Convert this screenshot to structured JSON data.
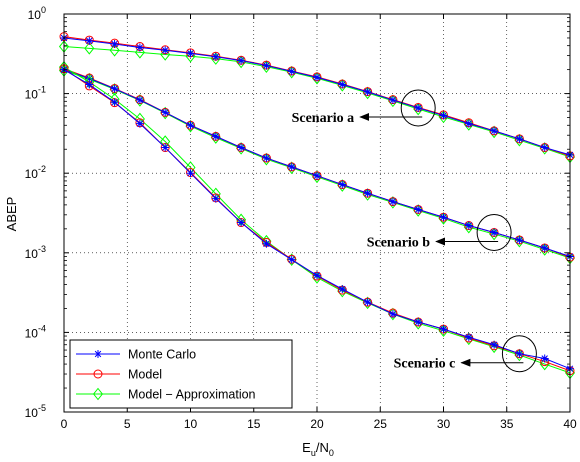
{
  "chart_data": {
    "type": "line",
    "xlabel": "E",
    "xlabel_sub1": "u",
    "xlabel_slash": "/N",
    "xlabel_sub2": "0",
    "ylabel": "ABEP",
    "xlim": [
      0,
      40
    ],
    "ylim": [
      1e-05,
      1
    ],
    "yscale": "log",
    "grid": true,
    "legend_position": "bottom-left",
    "x_ticks": [
      0,
      5,
      10,
      15,
      20,
      25,
      30,
      35,
      40
    ],
    "y_tick_labels": [
      {
        "base": "10",
        "exp": "0"
      },
      {
        "base": "10",
        "exp": "-1"
      },
      {
        "base": "10",
        "exp": "-2"
      },
      {
        "base": "10",
        "exp": "-3"
      },
      {
        "base": "10",
        "exp": "-4"
      },
      {
        "base": "10",
        "exp": "-5"
      }
    ],
    "x": [
      0,
      2,
      4,
      6,
      8,
      10,
      12,
      14,
      16,
      18,
      20,
      22,
      24,
      26,
      28,
      30,
      32,
      34,
      36,
      38,
      40
    ],
    "scenarios": [
      {
        "label": "Scenario a",
        "series": [
          {
            "name": "Monte Carlo",
            "color": "#0000ff",
            "marker": "star",
            "values": [
              0.5,
              0.46,
              0.42,
              0.38,
              0.35,
              0.32,
              0.29,
              0.26,
              0.225,
              0.19,
              0.16,
              0.13,
              0.105,
              0.083,
              0.066,
              0.053,
              0.042,
              0.034,
              0.027,
              0.021,
              0.017
            ]
          },
          {
            "name": "Model",
            "color": "#ff0000",
            "marker": "circle",
            "values": [
              0.52,
              0.47,
              0.43,
              0.39,
              0.355,
              0.325,
              0.295,
              0.262,
              0.228,
              0.192,
              0.162,
              0.132,
              0.106,
              0.084,
              0.067,
              0.054,
              0.043,
              0.034,
              0.027,
              0.021,
              0.0165
            ]
          },
          {
            "name": "Model - Approximation",
            "color": "#00ff00",
            "marker": "diamond",
            "values": [
              0.39,
              0.37,
              0.35,
              0.33,
              0.31,
              0.295,
              0.275,
              0.25,
              0.218,
              0.186,
              0.156,
              0.127,
              0.102,
              0.081,
              0.064,
              0.051,
              0.041,
              0.033,
              0.026,
              0.0205,
              0.016
            ]
          }
        ]
      },
      {
        "label": "Scenario b",
        "series": [
          {
            "name": "Monte Carlo",
            "color": "#0000ff",
            "marker": "star",
            "values": [
              0.2,
              0.155,
              0.115,
              0.083,
              0.058,
              0.04,
              0.029,
              0.021,
              0.0155,
              0.012,
              0.0093,
              0.0072,
              0.0056,
              0.0044,
              0.0035,
              0.0028,
              0.0022,
              0.0018,
              0.00145,
              0.00115,
              0.0009
            ]
          },
          {
            "name": "Model",
            "color": "#ff0000",
            "marker": "circle",
            "values": [
              0.205,
              0.157,
              0.116,
              0.084,
              0.058,
              0.04,
              0.029,
              0.021,
              0.0155,
              0.012,
              0.0093,
              0.0072,
              0.0056,
              0.0044,
              0.0035,
              0.0028,
              0.0022,
              0.0018,
              0.00145,
              0.00115,
              0.00088
            ]
          },
          {
            "name": "Model - Approximation",
            "color": "#00ff00",
            "marker": "diamond",
            "values": [
              0.195,
              0.152,
              0.113,
              0.082,
              0.057,
              0.039,
              0.028,
              0.0205,
              0.015,
              0.0117,
              0.009,
              0.007,
              0.0054,
              0.0043,
              0.0034,
              0.0027,
              0.0021,
              0.00172,
              0.0014,
              0.0011,
              0.00086
            ]
          }
        ]
      },
      {
        "label": "Scenario c",
        "series": [
          {
            "name": "Monte Carlo",
            "color": "#0000ff",
            "marker": "star",
            "values": [
              0.2,
              0.13,
              0.078,
              0.042,
              0.021,
              0.01,
              0.0048,
              0.0024,
              0.0013,
              0.00082,
              0.00052,
              0.00035,
              0.00024,
              0.00017,
              0.000135,
              0.00011,
              8.7e-05,
              7e-05,
              5.4e-05,
              4.7e-05,
              3.5e-05
            ]
          },
          {
            "name": "Model",
            "color": "#ff0000",
            "marker": "circle",
            "values": [
              0.205,
              0.125,
              0.077,
              0.043,
              0.021,
              0.0102,
              0.0049,
              0.0024,
              0.00135,
              0.00083,
              0.00051,
              0.00034,
              0.00024,
              0.000175,
              0.000135,
              0.00011,
              8.5e-05,
              6.8e-05,
              5.4e-05,
              4.3e-05,
              3.3e-05
            ]
          },
          {
            "name": "Model - Approximation",
            "color": "#00ff00",
            "marker": "diamond",
            "values": [
              0.215,
              0.14,
              0.085,
              0.048,
              0.025,
              0.0118,
              0.0055,
              0.0026,
              0.0014,
              0.00082,
              0.00049,
              0.00033,
              0.000235,
              0.00017,
              0.00013,
              0.000105,
              8.3e-05,
              6.6e-05,
              5.2e-05,
              4e-05,
              3.1e-05
            ]
          }
        ]
      }
    ],
    "annotations": [
      {
        "text": "Scenario a",
        "target_x": 28,
        "target_y": 0.066
      },
      {
        "text": "Scenario b",
        "target_x": 34,
        "target_y": 0.0018
      },
      {
        "text": "Scenario c",
        "target_x": 36,
        "target_y": 5.4e-05
      }
    ],
    "legend": [
      {
        "name": "Monte Carlo",
        "color": "#0000ff",
        "marker": "star"
      },
      {
        "name": "Model",
        "color": "#ff0000",
        "marker": "circle"
      },
      {
        "name": "Model − Approximation",
        "color": "#00ff00",
        "marker": "diamond"
      }
    ]
  }
}
